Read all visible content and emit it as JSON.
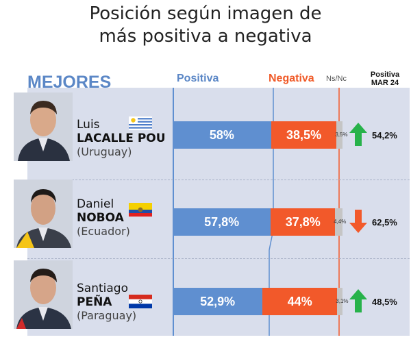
{
  "title_line1": "Posición según imagen de",
  "title_line2": "más positiva a negativa",
  "headers": {
    "section": "MEJORES",
    "positive": "Positiva",
    "negative": "Negativa",
    "nsnc": "Ns/Nc",
    "prev_line1": "Positiva",
    "prev_line2": "MAR 24"
  },
  "colors": {
    "positive": "#5f8fd0",
    "negative": "#f2592a",
    "nsnc": "#c5c5c5",
    "trend_up": "#27b24a",
    "trend_down": "#f2592a",
    "panel": "#d9deec"
  },
  "chart_data": {
    "type": "bar",
    "stacked": true,
    "categories": [
      "Luis LACALLE POU (Uruguay)",
      "Daniel NOBOA (Ecuador)",
      "Santiago PEÑA (Paraguay)"
    ],
    "series": [
      {
        "name": "Positiva",
        "values": [
          58,
          57.8,
          52.9
        ]
      },
      {
        "name": "Negativa",
        "values": [
          38.5,
          37.8,
          44
        ]
      },
      {
        "name": "Ns/Nc",
        "values": [
          3.5,
          4.4,
          3.1
        ]
      }
    ],
    "previous_positive": {
      "name": "Positiva MAR 24",
      "values": [
        54.2,
        62.5,
        48.5
      ]
    },
    "trend": [
      "up",
      "down",
      "up"
    ],
    "ylim": [
      0,
      100
    ]
  },
  "rows": [
    {
      "first_name": "Luis",
      "last_name": "LACALLE POU",
      "country": "(Uruguay)",
      "flag": "uruguay-flag",
      "positive_label": "58%",
      "negative_label": "38,5%",
      "nsnc_label": "3,5%",
      "prev_label": "54,2%",
      "trend_icon": "arrow-up-icon"
    },
    {
      "first_name": "Daniel",
      "last_name": "NOBOA",
      "country": "(Ecuador)",
      "flag": "ecuador-flag",
      "positive_label": "57,8%",
      "negative_label": "37,8%",
      "nsnc_label": "4,4%",
      "prev_label": "62,5%",
      "trend_icon": "arrow-down-icon"
    },
    {
      "first_name": "Santiago",
      "last_name": "PEÑA",
      "country": "(Paraguay)",
      "flag": "paraguay-flag",
      "positive_label": "52,9%",
      "negative_label": "44%",
      "nsnc_label": "3,1%",
      "prev_label": "48,5%",
      "trend_icon": "arrow-up-icon"
    }
  ]
}
